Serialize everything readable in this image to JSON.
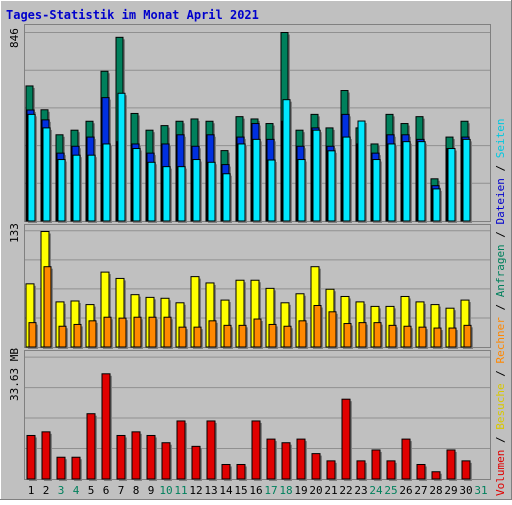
{
  "title": "Tages-Statistik im Monat April 2021",
  "colors": {
    "background": "#c0c0c0",
    "grid": "#909090",
    "title": "#0000cc",
    "anfragen": "#00805c",
    "dateien": "#0030e0",
    "seiten": "#00e8ff",
    "besuche": "#ffff00",
    "rechner": "#ff8800",
    "volumen": "#e00000",
    "weekend_day_label": "#00805c",
    "weekday_label": "#000000"
  },
  "right_legend": {
    "top": [
      {
        "text": "Anfragen",
        "color": "#00805c"
      },
      {
        "text": "Dateien",
        "color": "#0000cc"
      },
      {
        "text": "Seiten",
        "color": "#00c8e0"
      }
    ],
    "middle": [
      {
        "text": "Besuche",
        "color": "#d8c800"
      },
      {
        "text": "Rechner",
        "color": "#ff8800"
      }
    ],
    "bottom": [
      {
        "text": "Volumen",
        "color": "#e00000"
      }
    ],
    "separator": " / "
  },
  "chart_data": [
    {
      "type": "bar",
      "name": "Anfragen / Dateien / Seiten",
      "y_max_label": "846",
      "ylim": [
        0,
        846
      ],
      "x": [
        1,
        2,
        3,
        4,
        5,
        6,
        7,
        8,
        9,
        10,
        11,
        12,
        13,
        14,
        15,
        16,
        17,
        18,
        19,
        20,
        21,
        22,
        23,
        24,
        25,
        26,
        27,
        28,
        29,
        30
      ],
      "series": [
        {
          "name": "Anfragen",
          "values": [
            589,
            485,
            376,
            396,
            435,
            653,
            801,
            469,
            396,
            416,
            435,
            445,
            435,
            307,
            455,
            445,
            425,
            822,
            396,
            465,
            406,
            569,
            406,
            336,
            465,
            425,
            455,
            184,
            366,
            435
          ]
        },
        {
          "name": "Dateien",
          "values": [
            484,
            441,
            296,
            326,
            366,
            538,
            346,
            336,
            296,
            336,
            376,
            326,
            376,
            246,
            366,
            425,
            356,
            435,
            326,
            406,
            326,
            465,
            336,
            296,
            376,
            376,
            356,
            154,
            316,
            366
          ]
        },
        {
          "name": "Seiten",
          "values": [
            465,
            406,
            268,
            287,
            287,
            336,
            557,
            316,
            256,
            237,
            237,
            268,
            256,
            206,
            336,
            356,
            266,
            529,
            268,
            396,
            306,
            366,
            436,
            268,
            336,
            346,
            346,
            140,
            316,
            356
          ]
        }
      ]
    },
    {
      "type": "bar",
      "name": "Besuche / Rechner",
      "y_max_label": "133",
      "ylim": [
        0,
        133
      ],
      "x": [
        1,
        2,
        3,
        4,
        5,
        6,
        7,
        8,
        9,
        10,
        11,
        12,
        13,
        14,
        15,
        16,
        17,
        18,
        19,
        20,
        21,
        22,
        23,
        24,
        25,
        26,
        27,
        28,
        29,
        30
      ],
      "series": [
        {
          "name": "Besuche",
          "values": [
            70,
            128,
            50,
            51,
            47,
            83,
            76,
            58,
            55,
            54,
            49,
            78,
            71,
            52,
            74,
            74,
            65,
            49,
            59,
            89,
            64,
            56,
            50,
            45,
            45,
            56,
            50,
            47,
            43,
            52
          ]
        },
        {
          "name": "Rechner",
          "values": [
            27,
            89,
            23,
            25,
            29,
            33,
            32,
            33,
            33,
            33,
            22,
            22,
            29,
            24,
            24,
            31,
            25,
            23,
            29,
            46,
            39,
            26,
            27,
            27,
            24,
            23,
            22,
            21,
            21,
            24
          ]
        }
      ]
    },
    {
      "type": "bar",
      "name": "Volumen",
      "y_max_label": "33.63 MB",
      "ylim": [
        0,
        33.63
      ],
      "x": [
        1,
        2,
        3,
        4,
        5,
        6,
        7,
        8,
        9,
        10,
        11,
        12,
        13,
        14,
        15,
        16,
        17,
        18,
        19,
        20,
        21,
        22,
        23,
        24,
        25,
        26,
        27,
        28,
        29,
        30
      ],
      "series": [
        {
          "name": "Volumen",
          "values": [
            12,
            13,
            6,
            6,
            18,
            29,
            12,
            13,
            12,
            10,
            16,
            9,
            16,
            4,
            4,
            16,
            11,
            10,
            11,
            7,
            5,
            22,
            5,
            8,
            5,
            11,
            4,
            2,
            8,
            5
          ]
        }
      ]
    }
  ],
  "x_labels": [
    {
      "text": "1",
      "weekend": false
    },
    {
      "text": "2",
      "weekend": false
    },
    {
      "text": "3",
      "weekend": true
    },
    {
      "text": "4",
      "weekend": true
    },
    {
      "text": "5",
      "weekend": false
    },
    {
      "text": "6",
      "weekend": false
    },
    {
      "text": "7",
      "weekend": false
    },
    {
      "text": "8",
      "weekend": false
    },
    {
      "text": "9",
      "weekend": false
    },
    {
      "text": "10",
      "weekend": true
    },
    {
      "text": "11",
      "weekend": true
    },
    {
      "text": "12",
      "weekend": false
    },
    {
      "text": "13",
      "weekend": false
    },
    {
      "text": "14",
      "weekend": false
    },
    {
      "text": "15",
      "weekend": false
    },
    {
      "text": "16",
      "weekend": false
    },
    {
      "text": "17",
      "weekend": true
    },
    {
      "text": "18",
      "weekend": true
    },
    {
      "text": "19",
      "weekend": false
    },
    {
      "text": "20",
      "weekend": false
    },
    {
      "text": "21",
      "weekend": false
    },
    {
      "text": "22",
      "weekend": false
    },
    {
      "text": "23",
      "weekend": false
    },
    {
      "text": "24",
      "weekend": true
    },
    {
      "text": "25",
      "weekend": true
    },
    {
      "text": "26",
      "weekend": false
    },
    {
      "text": "27",
      "weekend": false
    },
    {
      "text": "28",
      "weekend": false
    },
    {
      "text": "29",
      "weekend": false
    },
    {
      "text": "30",
      "weekend": false
    },
    {
      "text": "31",
      "weekend": true
    }
  ]
}
